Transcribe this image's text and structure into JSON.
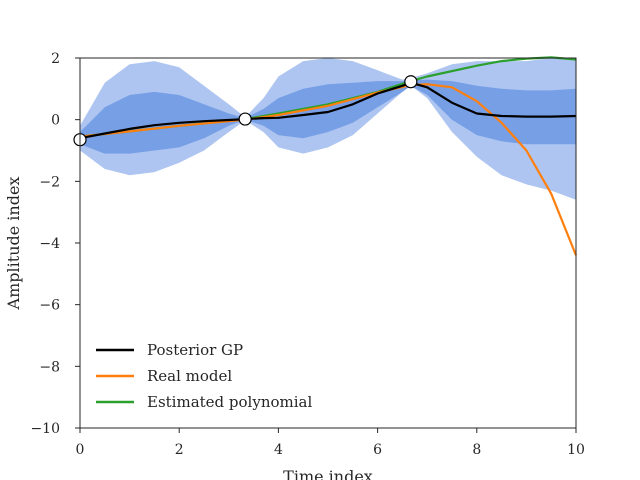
{
  "chart_data": {
    "type": "line",
    "title": "",
    "xlabel": "Time index",
    "ylabel": "Amplitude index",
    "xlim": [
      0,
      10
    ],
    "ylim": [
      -10,
      2
    ],
    "xticks": [
      0,
      2,
      4,
      6,
      8,
      10
    ],
    "yticks": [
      -10,
      -8,
      -6,
      -4,
      -2,
      0,
      2
    ],
    "xtick_labels": [
      "0",
      "2",
      "4",
      "6",
      "8",
      "10"
    ],
    "ytick_labels": [
      "−10",
      "−8",
      "−6",
      "−4",
      "−2",
      "0",
      "2"
    ],
    "grid": false,
    "legend_position": "lower-left",
    "series": [
      {
        "name": "Posterior GP",
        "color": "#000000",
        "x": [
          0,
          0.5,
          1,
          1.5,
          2,
          2.5,
          3,
          3.33,
          3.7,
          4,
          4.5,
          5,
          5.5,
          6,
          6.5,
          6.67,
          7,
          7.5,
          8,
          8.5,
          9,
          9.5,
          10
        ],
        "y": [
          -0.6,
          -0.45,
          -0.3,
          -0.18,
          -0.1,
          -0.05,
          -0.01,
          0.02,
          0.05,
          0.06,
          0.15,
          0.25,
          0.5,
          0.85,
          1.1,
          1.2,
          1.05,
          0.55,
          0.2,
          0.12,
          0.1,
          0.1,
          0.12
        ]
      },
      {
        "name": "Real model",
        "color": "#ff7f0e",
        "x": [
          0,
          1,
          2,
          3,
          3.33,
          4,
          5,
          6,
          6.67,
          7,
          7.5,
          8,
          8.5,
          9,
          9.5,
          10
        ],
        "y": [
          -0.55,
          -0.38,
          -0.2,
          -0.05,
          0.0,
          0.15,
          0.45,
          0.88,
          1.12,
          1.15,
          1.05,
          0.6,
          -0.1,
          -1.0,
          -2.4,
          -4.4
        ]
      },
      {
        "name": "Estimated polynomial",
        "color": "#2ca02c",
        "x": [
          0,
          1,
          2,
          3,
          3.33,
          4,
          5,
          6,
          6.67,
          7,
          8,
          8.5,
          9,
          9.5,
          10
        ],
        "y": [
          -0.55,
          -0.38,
          -0.2,
          -0.04,
          0.02,
          0.2,
          0.5,
          0.9,
          1.25,
          1.4,
          1.75,
          1.9,
          1.98,
          2.02,
          1.95
        ]
      }
    ],
    "confidence_bands": {
      "color": "#4a7fde",
      "x": [
        0,
        0.5,
        1,
        1.5,
        2,
        2.5,
        3,
        3.33,
        3.7,
        4,
        4.5,
        5,
        5.5,
        6,
        6.5,
        6.67,
        7,
        7.5,
        8,
        8.5,
        9,
        9.5,
        10
      ],
      "outer_upper": [
        -0.2,
        1.2,
        1.8,
        1.9,
        1.7,
        1.1,
        0.5,
        0.08,
        0.7,
        1.4,
        1.9,
        2.0,
        1.9,
        1.6,
        1.3,
        1.35,
        1.5,
        1.8,
        1.9,
        1.9,
        1.9,
        2.0,
        2.0
      ],
      "outer_lower": [
        -1.0,
        -1.6,
        -1.8,
        -1.7,
        -1.4,
        -1.0,
        -0.4,
        -0.02,
        -0.4,
        -0.9,
        -1.1,
        -0.9,
        -0.5,
        0.2,
        0.9,
        1.1,
        0.7,
        -0.4,
        -1.2,
        -1.8,
        -2.1,
        -2.3,
        -2.6
      ],
      "inner_upper": [
        -0.4,
        0.4,
        0.8,
        0.9,
        0.8,
        0.5,
        0.2,
        0.05,
        0.35,
        0.7,
        1.0,
        1.15,
        1.2,
        1.25,
        1.25,
        1.28,
        1.3,
        1.25,
        1.1,
        1.0,
        0.95,
        0.95,
        1.0
      ],
      "inner_lower": [
        -0.8,
        -1.1,
        -1.1,
        -1.0,
        -0.9,
        -0.6,
        -0.2,
        0.0,
        -0.2,
        -0.5,
        -0.6,
        -0.4,
        -0.1,
        0.4,
        0.9,
        1.1,
        0.8,
        0.0,
        -0.5,
        -0.7,
        -0.8,
        -0.8,
        -0.8
      ]
    },
    "observations": {
      "x": [
        0,
        3.33,
        6.67
      ],
      "y": [
        -0.65,
        0.02,
        1.23
      ]
    }
  }
}
